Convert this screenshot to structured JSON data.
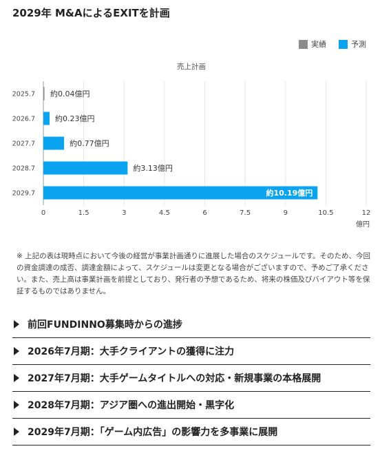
{
  "page": {
    "title": "2029年 M&AによるEXITを計画"
  },
  "colors": {
    "actual": "#8c8c8c",
    "forecast": "#0aa3ef",
    "grid": "#e6e6e6",
    "axis": "#999999"
  },
  "chart_data": {
    "type": "bar",
    "orientation": "horizontal",
    "title": "売上計画",
    "categories": [
      "2025.7",
      "2026.7",
      "2027.7",
      "2028.7",
      "2029.7"
    ],
    "series": [
      {
        "name": "実績",
        "color": "#8c8c8c",
        "values": [
          0.04,
          0,
          0,
          0,
          0
        ]
      },
      {
        "name": "予測",
        "color": "#0aa3ef",
        "values": [
          0,
          0.23,
          0.77,
          3.13,
          10.19
        ]
      }
    ],
    "data_labels": [
      "約0.04億円",
      "約0.23億円",
      "約0.77億円",
      "約3.13億円",
      "約10.19億円"
    ],
    "xticks": [
      "0",
      "1.5",
      "3",
      "4.5",
      "6",
      "7.5",
      "9",
      "10.5",
      "12"
    ],
    "xlim": [
      0,
      12
    ],
    "xunit": "億円",
    "grid": true,
    "legend_position": "top-right"
  },
  "disclaimer": "※ 上記の表は現時点において今後の経営が事業計画通りに進展した場合のスケジュールです。そのため、今回の資金調達の成否、調達金額によって、スケジュールは変更となる場合がございますので、予めご了承ください。また、売上高は事業計画を前提としており、発行者の予想であるため、将来の株価及びバイアウト等を保証するものではありません。",
  "sections": [
    {
      "label": "前回FUNDINNO募集時からの進捗"
    },
    {
      "label": "2026年7月期：大手クライアントの獲得に注力"
    },
    {
      "label": "2027年7月期：大手ゲームタイトルへの対応・新規事業の本格展開"
    },
    {
      "label": "2028年7月期：アジア圏への進出開始・黒字化"
    },
    {
      "label": "2029年7月期：「ゲーム内広告」の影響力を多事業に展開"
    }
  ]
}
